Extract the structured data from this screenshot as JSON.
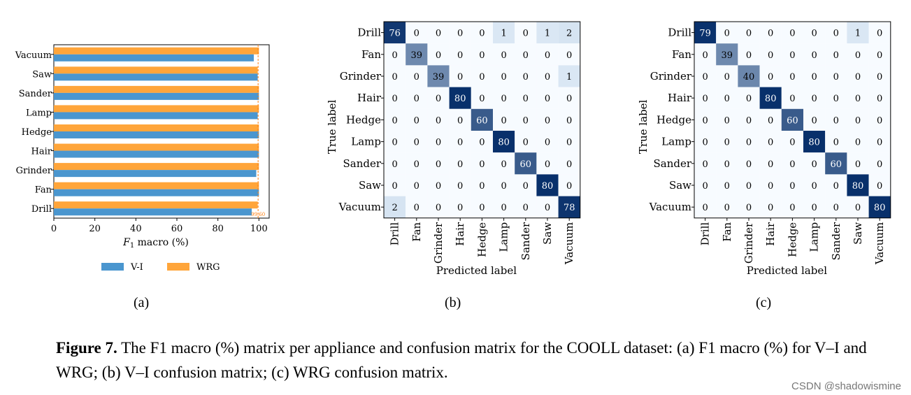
{
  "figure": {
    "panel_labels": [
      "(a)",
      "(b)",
      "(c)"
    ],
    "caption_prefix": "Figure 7.",
    "caption_text": "The F1 macro (%) matrix per appliance and confusion matrix for the COOLL dataset: (a) F1 macro (%) for V–I and WRG; (b) V–I confusion matrix; (c) WRG confusion matrix.",
    "watermark": "CSDN @shadowismine"
  },
  "chart_data": [
    {
      "type": "bar",
      "orientation": "horizontal",
      "categories": [
        "Drill",
        "Fan",
        "Grinder",
        "Hair",
        "Hedge",
        "Lamp",
        "Sander",
        "Saw",
        "Vacuum"
      ],
      "series": [
        {
          "name": "V-I",
          "color": "#4a96cf",
          "values": [
            96.5,
            100,
            98.7,
            100,
            100,
            99.4,
            100,
            99.4,
            97.5
          ]
        },
        {
          "name": "WRG",
          "color": "#ffa53a",
          "values": [
            99.4,
            100,
            100,
            100,
            100,
            100,
            100,
            99.4,
            100
          ]
        }
      ],
      "xlabel": "F1 macro (%)",
      "xlim": [
        0,
        105
      ],
      "xticks": [
        0,
        20,
        40,
        60,
        80,
        100
      ],
      "reference_line": {
        "value": 99.6,
        "label": "99.60",
        "color": "#ff7f0e"
      },
      "legend_position": "bottom"
    },
    {
      "type": "heatmap",
      "title": "V–I confusion matrix",
      "labels": [
        "Drill",
        "Fan",
        "Grinder",
        "Hair",
        "Hedge",
        "Lamp",
        "Sander",
        "Saw",
        "Vacuum"
      ],
      "xlabel": "Predicted label",
      "ylabel": "True label",
      "matrix": [
        [
          76,
          0,
          0,
          0,
          0,
          1,
          0,
          1,
          2
        ],
        [
          0,
          39,
          0,
          0,
          0,
          0,
          0,
          0,
          0
        ],
        [
          0,
          0,
          39,
          0,
          0,
          0,
          0,
          0,
          1
        ],
        [
          0,
          0,
          0,
          80,
          0,
          0,
          0,
          0,
          0
        ],
        [
          0,
          0,
          0,
          0,
          60,
          0,
          0,
          0,
          0
        ],
        [
          0,
          0,
          0,
          0,
          0,
          80,
          0,
          0,
          0
        ],
        [
          0,
          0,
          0,
          0,
          0,
          0,
          60,
          0,
          0
        ],
        [
          0,
          0,
          0,
          0,
          0,
          0,
          0,
          80,
          0
        ],
        [
          2,
          0,
          0,
          0,
          0,
          0,
          0,
          0,
          78
        ]
      ]
    },
    {
      "type": "heatmap",
      "title": "WRG confusion matrix",
      "labels": [
        "Drill",
        "Fan",
        "Grinder",
        "Hair",
        "Hedge",
        "Lamp",
        "Sander",
        "Saw",
        "Vacuum"
      ],
      "xlabel": "Predicted label",
      "ylabel": "True label",
      "matrix": [
        [
          79,
          0,
          0,
          0,
          0,
          0,
          0,
          1,
          0
        ],
        [
          0,
          39,
          0,
          0,
          0,
          0,
          0,
          0,
          0
        ],
        [
          0,
          0,
          40,
          0,
          0,
          0,
          0,
          0,
          0
        ],
        [
          0,
          0,
          0,
          80,
          0,
          0,
          0,
          0,
          0
        ],
        [
          0,
          0,
          0,
          0,
          60,
          0,
          0,
          0,
          0
        ],
        [
          0,
          0,
          0,
          0,
          0,
          80,
          0,
          0,
          0
        ],
        [
          0,
          0,
          0,
          0,
          0,
          0,
          60,
          0,
          0
        ],
        [
          0,
          0,
          0,
          0,
          0,
          0,
          0,
          80,
          0
        ],
        [
          0,
          0,
          0,
          0,
          0,
          0,
          0,
          0,
          80
        ]
      ]
    }
  ]
}
